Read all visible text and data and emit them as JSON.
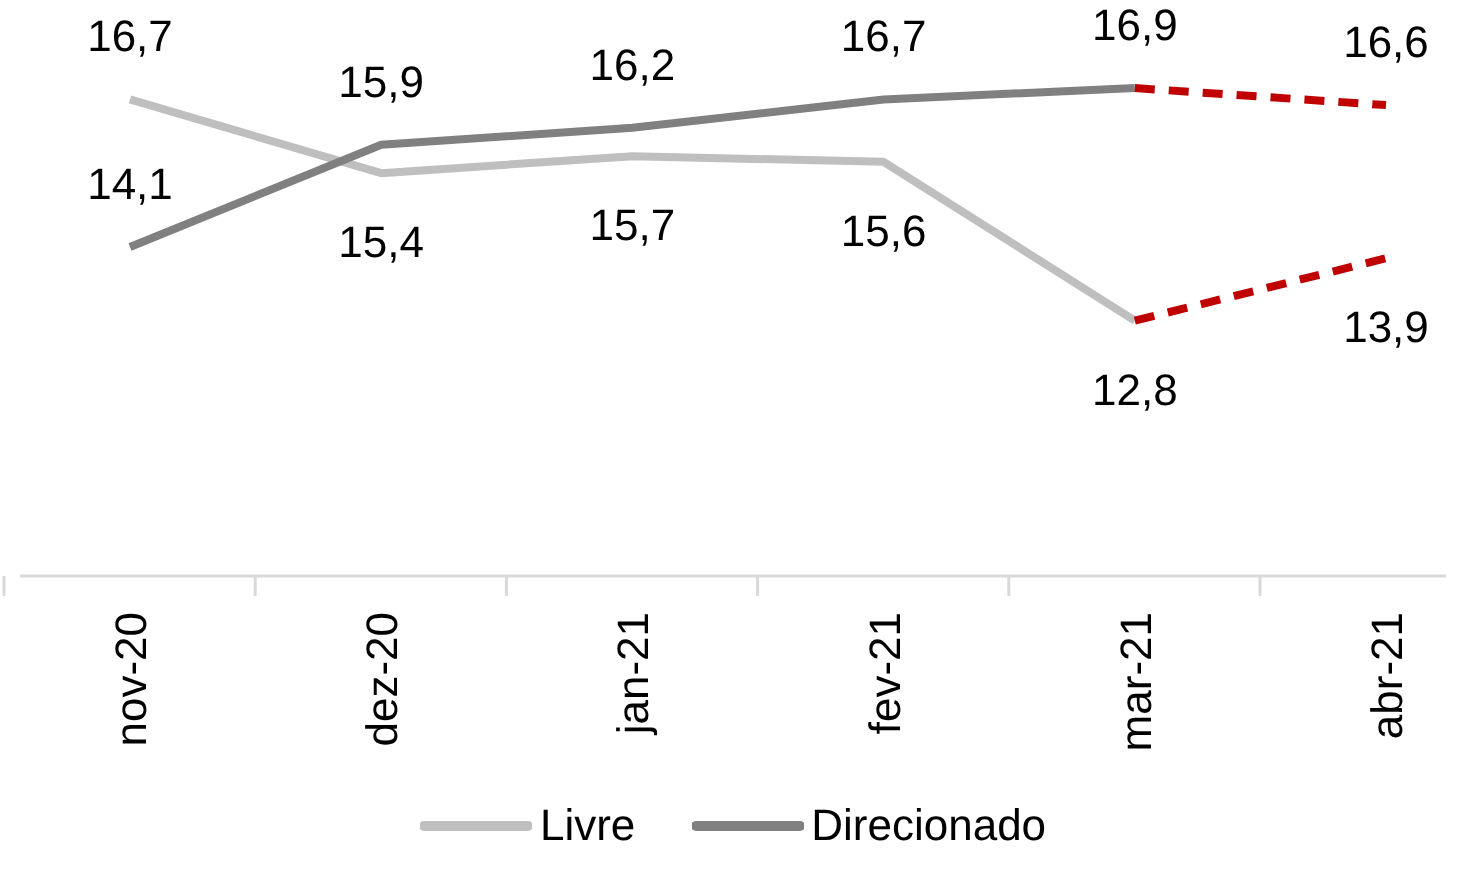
{
  "chart_data": {
    "type": "line",
    "categories": [
      "nov-20",
      "dez-20",
      "jan-21",
      "fev-21",
      "mar-21",
      "abr-21"
    ],
    "marker": "none",
    "legend": "bottom",
    "series": [
      {
        "name": "Livre",
        "color": "#bfbfbf",
        "line_style": "solid",
        "values": [
          16.7,
          15.4,
          15.7,
          15.6,
          12.8,
          null
        ],
        "value_labels": [
          "16,7",
          "15,4",
          "15,7",
          "15,6",
          "12,8",
          null
        ]
      },
      {
        "name": "Direcionado",
        "color": "#808080",
        "line_style": "solid",
        "values": [
          14.1,
          15.9,
          16.2,
          16.7,
          16.9,
          null
        ],
        "value_labels": [
          "14,1",
          "15,9",
          "16,2",
          "16,7",
          "16,9",
          null
        ]
      },
      {
        "color": "#c00000",
        "line_style": "dashed",
        "values": [
          null,
          null,
          null,
          null,
          12.8,
          13.9
        ],
        "value_labels": [
          null,
          null,
          null,
          null,
          null,
          "13,9"
        ]
      },
      {
        "color": "#c00000",
        "line_style": "dashed",
        "values": [
          null,
          null,
          null,
          null,
          16.9,
          16.6
        ],
        "value_labels": [
          null,
          null,
          null,
          null,
          null,
          "16,6"
        ]
      }
    ]
  }
}
